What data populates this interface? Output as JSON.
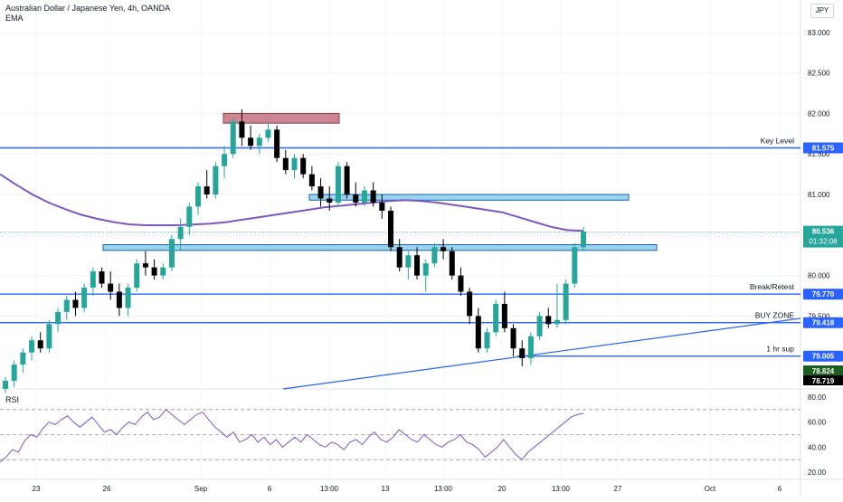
{
  "legend": {
    "symbol": "Australian Dollar / Japanese Yen, 4h, OANDA",
    "indicator": "EMA"
  },
  "currency_button": "JPY",
  "colors": {
    "up": "#26a69a",
    "down": "#000000",
    "ema": "#7e57c2",
    "level_line": "#2962ff",
    "zone_fill": "#87ceeb",
    "supply_fill": "#c5707f",
    "rsi_line": "#7e57c2",
    "current_price": "#26a69a",
    "label_dark_green": "#1b5e20"
  },
  "chart_data": [
    {
      "type": "candlestick",
      "title": "Australian Dollar / Japanese Yen, 4h, OANDA",
      "y_ticks": [
        "83.000",
        "82.500",
        "82.000",
        "81.500",
        "81.000",
        "80.500",
        "80.000",
        "79.500"
      ],
      "ylim": [
        78.6,
        83.4
      ],
      "x_ticks": [
        "23",
        "26",
        "Sep",
        "6",
        "13:00",
        "13",
        "13:00",
        "20",
        "13:00",
        "27",
        "Oct",
        "6"
      ],
      "candles": [
        [
          78.6,
          78.75,
          78.55,
          78.7
        ],
        [
          78.7,
          78.95,
          78.62,
          78.9
        ],
        [
          78.9,
          79.1,
          78.8,
          79.05
        ],
        [
          79.05,
          79.25,
          78.95,
          79.2
        ],
        [
          79.2,
          79.3,
          79.05,
          79.1
        ],
        [
          79.1,
          79.45,
          79.05,
          79.4
        ],
        [
          79.4,
          79.6,
          79.3,
          79.55
        ],
        [
          79.55,
          79.75,
          79.45,
          79.7
        ],
        [
          79.7,
          79.8,
          79.5,
          79.6
        ],
        [
          79.6,
          79.9,
          79.55,
          79.85
        ],
        [
          79.85,
          80.1,
          79.75,
          80.05
        ],
        [
          80.05,
          80.1,
          79.85,
          79.9
        ],
        [
          79.9,
          80.05,
          79.7,
          79.8
        ],
        [
          79.8,
          79.9,
          79.5,
          79.6
        ],
        [
          79.6,
          79.9,
          79.5,
          79.85
        ],
        [
          79.85,
          80.2,
          79.8,
          80.15
        ],
        [
          80.15,
          80.3,
          80.0,
          80.1
        ],
        [
          80.1,
          80.2,
          79.95,
          80.0
        ],
        [
          80.0,
          80.15,
          79.95,
          80.1
        ],
        [
          80.1,
          80.5,
          80.05,
          80.45
        ],
        [
          80.45,
          80.7,
          80.3,
          80.6
        ],
        [
          80.6,
          80.9,
          80.5,
          80.85
        ],
        [
          80.85,
          81.15,
          80.75,
          81.1
        ],
        [
          81.1,
          81.3,
          80.95,
          81.0
        ],
        [
          81.0,
          81.4,
          80.95,
          81.35
        ],
        [
          81.35,
          81.6,
          81.2,
          81.5
        ],
        [
          81.5,
          81.95,
          81.45,
          81.9
        ],
        [
          81.9,
          82.05,
          81.6,
          81.7
        ],
        [
          81.7,
          81.85,
          81.55,
          81.6
        ],
        [
          81.6,
          81.75,
          81.5,
          81.7
        ],
        [
          81.7,
          81.9,
          81.65,
          81.8
        ],
        [
          81.8,
          81.85,
          81.4,
          81.45
        ],
        [
          81.45,
          81.55,
          81.25,
          81.3
        ],
        [
          81.3,
          81.5,
          81.2,
          81.45
        ],
        [
          81.45,
          81.5,
          81.2,
          81.25
        ],
        [
          81.25,
          81.35,
          81.05,
          81.1
        ],
        [
          81.1,
          81.2,
          80.85,
          80.95
        ],
        [
          80.95,
          81.1,
          80.8,
          80.9
        ],
        [
          80.9,
          81.4,
          80.85,
          81.35
        ],
        [
          81.35,
          81.4,
          80.95,
          81.0
        ],
        [
          81.0,
          81.15,
          80.85,
          80.9
        ],
        [
          80.9,
          81.1,
          80.85,
          81.05
        ],
        [
          81.05,
          81.15,
          80.85,
          80.9
        ],
        [
          80.9,
          81.0,
          80.7,
          80.8
        ],
        [
          80.8,
          80.85,
          80.3,
          80.35
        ],
        [
          80.35,
          80.45,
          80.05,
          80.1
        ],
        [
          80.1,
          80.3,
          79.95,
          80.25
        ],
        [
          80.25,
          80.35,
          79.95,
          80.0
        ],
        [
          80.0,
          80.2,
          79.8,
          80.15
        ],
        [
          80.15,
          80.4,
          80.1,
          80.35
        ],
        [
          80.35,
          80.45,
          80.2,
          80.3
        ],
        [
          80.3,
          80.35,
          79.95,
          80.0
        ],
        [
          80.0,
          80.1,
          79.75,
          79.8
        ],
        [
          79.8,
          79.85,
          79.4,
          79.5
        ],
        [
          79.5,
          79.6,
          79.05,
          79.1
        ],
        [
          79.1,
          79.35,
          79.05,
          79.3
        ],
        [
          79.3,
          79.7,
          79.25,
          79.65
        ],
        [
          79.65,
          79.8,
          79.3,
          79.35
        ],
        [
          79.35,
          79.4,
          79.0,
          79.1
        ],
        [
          79.1,
          79.2,
          78.88,
          78.98
        ],
        [
          78.98,
          79.3,
          78.9,
          79.25
        ],
        [
          79.25,
          79.55,
          79.2,
          79.5
        ],
        [
          79.5,
          79.6,
          79.35,
          79.4
        ],
        [
          79.4,
          79.9,
          79.35,
          79.45
        ],
        [
          79.45,
          79.95,
          79.4,
          79.9
        ],
        [
          79.9,
          80.4,
          79.85,
          80.35
        ],
        [
          80.35,
          80.6,
          80.3,
          80.54
        ]
      ],
      "ema_series": {
        "name": "EMA",
        "values": [
          81.25,
          81.12,
          81.0,
          80.9,
          80.82,
          80.75,
          80.7,
          80.66,
          80.63,
          80.62,
          80.62,
          80.62,
          80.63,
          80.64,
          80.66,
          80.69,
          80.72,
          80.75,
          80.78,
          80.81,
          80.84,
          80.86,
          80.88,
          80.9,
          80.92,
          80.93,
          80.92,
          80.9,
          80.87,
          80.84,
          80.81,
          80.78,
          80.72,
          80.66,
          80.6,
          80.56,
          80.55
        ]
      },
      "horizontal_levels": [
        {
          "label": "Key Level",
          "price_label": "81.575",
          "value": 81.575
        },
        {
          "label": "Break/Retest",
          "price_label": "79.770",
          "value": 79.77
        },
        {
          "label": "BUY ZONE",
          "price_label": "79.418",
          "value": 79.418
        },
        {
          "label": "1 hr sup",
          "price_label": "79.005",
          "value": 79.005
        }
      ],
      "zones": [
        {
          "name": "supply",
          "top": 82.0,
          "bottom": 81.88
        },
        {
          "name": "upper-blue",
          "top": 81.0,
          "bottom": 80.93
        },
        {
          "name": "lower-blue",
          "top": 80.38,
          "bottom": 80.31
        }
      ],
      "current_price": {
        "value": "80.536",
        "countdown": "01:32:08"
      },
      "extra_price_labels": [
        "78.824",
        "78.719"
      ]
    },
    {
      "type": "line",
      "title": "RSI",
      "y_ticks": [
        "80.00",
        "60.00",
        "40.00",
        "20.00"
      ],
      "ylim": [
        20,
        80
      ],
      "bands": [
        70,
        50,
        30
      ],
      "values": [
        28,
        32,
        38,
        36,
        45,
        50,
        48,
        55,
        60,
        58,
        62,
        65,
        60,
        56,
        60,
        64,
        58,
        52,
        54,
        50,
        56,
        60,
        58,
        64,
        68,
        62,
        64,
        70,
        66,
        62,
        58,
        62,
        66,
        68,
        62,
        56,
        52,
        48,
        52,
        44,
        46,
        50,
        44,
        48,
        42,
        46,
        40,
        44,
        48,
        44,
        50,
        46,
        42,
        40,
        44,
        42,
        38,
        44,
        46,
        42,
        48,
        52,
        46,
        44,
        48,
        54,
        50,
        46,
        44,
        50,
        46,
        42,
        40,
        44,
        46,
        50,
        44,
        42,
        38,
        32,
        36,
        40,
        46,
        40,
        34,
        30,
        36,
        40,
        44,
        48,
        52,
        56,
        60,
        64,
        66,
        67
      ]
    }
  ]
}
